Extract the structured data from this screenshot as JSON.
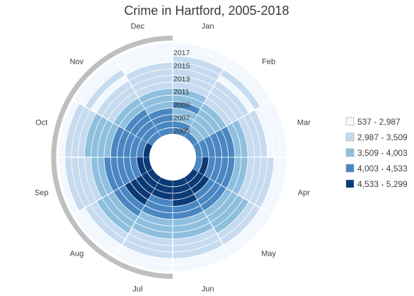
{
  "chart_data": {
    "type": "heatmap",
    "layout": "radial",
    "title": "Crime in Hartford, 2005-2018",
    "months": [
      "Jan",
      "Feb",
      "Mar",
      "Apr",
      "May",
      "Jun",
      "Jul",
      "Aug",
      "Sep",
      "Oct",
      "Nov",
      "Dec"
    ],
    "years": [
      2005,
      2006,
      2007,
      2008,
      2009,
      2010,
      2011,
      2012,
      2013,
      2014,
      2015,
      2016,
      2017,
      2018
    ],
    "year_labels": [
      "2005",
      "2007",
      "2009",
      "2011",
      "2013",
      "2015",
      "2017"
    ],
    "legend": {
      "position": "right",
      "bins": [
        {
          "label": "537 - 2,987",
          "color": "#f3f8fe"
        },
        {
          "label": "2,987 - 3,509",
          "color": "#c6dbef"
        },
        {
          "label": "3,509 - 4,003",
          "color": "#8ebfdf"
        },
        {
          "label": "4,003 - 4,533",
          "color": "#4a87c2"
        },
        {
          "label": "4,533 - 5,299",
          "color": "#0b3a76"
        }
      ]
    },
    "bins_by_year": {
      "2005": [
        3,
        3,
        3,
        3,
        4,
        4,
        4,
        4,
        4,
        4,
        3,
        3
      ],
      "2006": [
        3,
        2,
        3,
        4,
        4,
        4,
        4,
        4,
        4,
        3,
        3,
        3
      ],
      "2007": [
        2,
        2,
        3,
        3,
        4,
        4,
        4,
        4,
        3,
        3,
        3,
        3
      ],
      "2008": [
        2,
        2,
        3,
        3,
        3,
        4,
        3,
        4,
        3,
        3,
        3,
        3
      ],
      "2009": [
        3,
        2,
        3,
        3,
        3,
        3,
        3,
        4,
        3,
        3,
        3,
        2
      ],
      "2010": [
        2,
        2,
        3,
        3,
        3,
        3,
        3,
        3,
        3,
        3,
        2,
        2
      ],
      "2011": [
        2,
        1,
        2,
        2,
        2,
        2,
        2,
        3,
        3,
        2,
        2,
        2
      ],
      "2012": [
        1,
        1,
        2,
        2,
        2,
        2,
        2,
        2,
        2,
        2,
        1,
        1
      ],
      "2013": [
        1,
        1,
        1,
        1,
        2,
        2,
        2,
        2,
        2,
        2,
        1,
        1
      ],
      "2014": [
        1,
        1,
        1,
        1,
        2,
        1,
        1,
        2,
        1,
        2,
        1,
        1
      ],
      "2015": [
        1,
        0,
        1,
        1,
        1,
        1,
        1,
        1,
        1,
        1,
        0,
        1
      ],
      "2016": [
        1,
        1,
        0,
        1,
        1,
        1,
        1,
        1,
        1,
        1,
        1,
        0
      ],
      "2017": [
        0,
        0,
        0,
        0,
        0,
        0,
        0,
        0,
        1,
        1,
        0,
        0
      ],
      "2018": [
        0,
        0,
        0,
        0,
        0,
        0,
        0,
        0,
        0,
        0,
        0,
        0
      ]
    },
    "highlight_arc_color": "#bfbfbf"
  }
}
